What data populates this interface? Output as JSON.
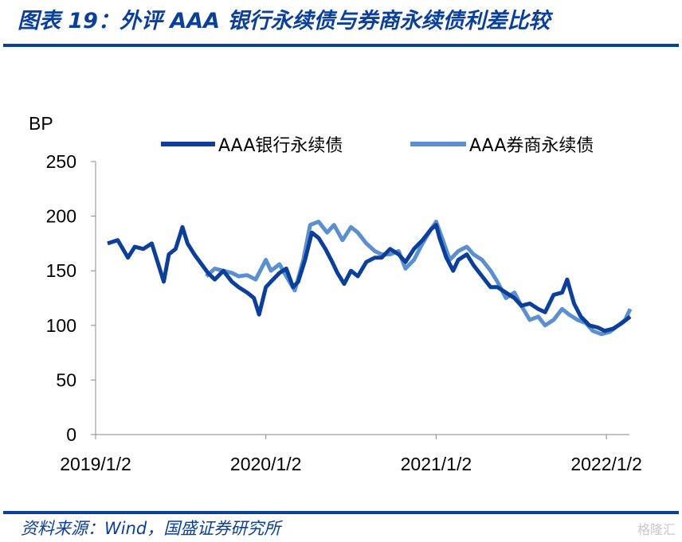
{
  "header": {
    "title": "图表 19：外评 AAA 银行永续债与券商永续债利差比较"
  },
  "footer": {
    "source": "资料来源：Wind，国盛证券研究所",
    "watermark": "格隆汇"
  },
  "chart_data": {
    "type": "line",
    "title": "外评 AAA 银行永续债与券商永续债利差比较",
    "ylabel": "BP",
    "xlabel": "",
    "ylim": [
      0,
      250
    ],
    "yticks": [
      "0",
      "50",
      "100",
      "150",
      "200",
      "250"
    ],
    "xticks": [
      "2019/1/2",
      "2020/1/2",
      "2021/1/2",
      "2022/1/2"
    ],
    "xlim": [
      2019.0,
      2022.2
    ],
    "legend": "top",
    "colors": {
      "bank": "#0b3f9a",
      "broker": "#5b8fd0"
    },
    "series": [
      {
        "name": "AAA银行永续债",
        "key": "bank",
        "x": [
          2019.07,
          2019.13,
          2019.19,
          2019.23,
          2019.28,
          2019.33,
          2019.37,
          2019.4,
          2019.43,
          2019.47,
          2019.51,
          2019.54,
          2019.58,
          2019.66,
          2019.7,
          2019.75,
          2019.8,
          2019.84,
          2019.89,
          2019.93,
          2019.96,
          2020.0,
          2020.03,
          2020.08,
          2020.12,
          2020.16,
          2020.19,
          2020.23,
          2020.27,
          2020.31,
          2020.35,
          2020.39,
          2020.42,
          2020.46,
          2020.5,
          2020.54,
          2020.59,
          2020.64,
          2020.68,
          2020.73,
          2020.78,
          2020.82,
          2020.87,
          2020.92,
          2020.97,
          2021.0,
          2021.02,
          2021.06,
          2021.1,
          2021.13,
          2021.18,
          2021.22,
          2021.27,
          2021.32,
          2021.36,
          2021.41,
          2021.46,
          2021.5,
          2021.55,
          2021.6,
          2021.64,
          2021.69,
          2021.74,
          2021.77,
          2021.81,
          2021.85,
          2021.9,
          2021.95,
          2021.99,
          2022.04,
          2022.09,
          2022.14
        ],
        "y": [
          175,
          178,
          162,
          172,
          170,
          175,
          155,
          140,
          165,
          170,
          190,
          175,
          165,
          148,
          142,
          150,
          140,
          135,
          130,
          125,
          110,
          135,
          140,
          148,
          152,
          135,
          140,
          160,
          185,
          180,
          170,
          158,
          148,
          138,
          150,
          145,
          158,
          162,
          162,
          170,
          165,
          158,
          170,
          178,
          188,
          192,
          180,
          162,
          150,
          160,
          165,
          155,
          145,
          135,
          135,
          130,
          125,
          118,
          120,
          115,
          112,
          128,
          130,
          142,
          120,
          108,
          100,
          98,
          95,
          97,
          102,
          108
        ]
      },
      {
        "name": "AAA券商永续债",
        "key": "broker",
        "x": [
          2019.65,
          2019.7,
          2019.75,
          2019.8,
          2019.84,
          2019.89,
          2019.94,
          2020.0,
          2020.03,
          2020.08,
          2020.12,
          2020.17,
          2020.22,
          2020.26,
          2020.31,
          2020.36,
          2020.4,
          2020.45,
          2020.5,
          2020.54,
          2020.59,
          2020.64,
          2020.68,
          2020.73,
          2020.78,
          2020.82,
          2020.87,
          2020.92,
          2020.97,
          2021.0,
          2021.04,
          2021.08,
          2021.13,
          2021.18,
          2021.22,
          2021.27,
          2021.32,
          2021.36,
          2021.41,
          2021.46,
          2021.5,
          2021.55,
          2021.6,
          2021.64,
          2021.69,
          2021.74,
          2021.78,
          2021.83,
          2021.88,
          2021.92,
          2021.97,
          2022.02,
          2022.07,
          2022.11,
          2022.14
        ],
        "y": [
          145,
          152,
          150,
          148,
          145,
          146,
          142,
          160,
          150,
          156,
          145,
          132,
          160,
          192,
          195,
          185,
          192,
          178,
          190,
          185,
          175,
          168,
          165,
          165,
          168,
          152,
          160,
          175,
          188,
          195,
          178,
          160,
          168,
          172,
          165,
          160,
          150,
          140,
          125,
          130,
          118,
          105,
          108,
          100,
          105,
          115,
          110,
          105,
          102,
          95,
          92,
          94,
          100,
          105,
          115
        ]
      }
    ]
  }
}
